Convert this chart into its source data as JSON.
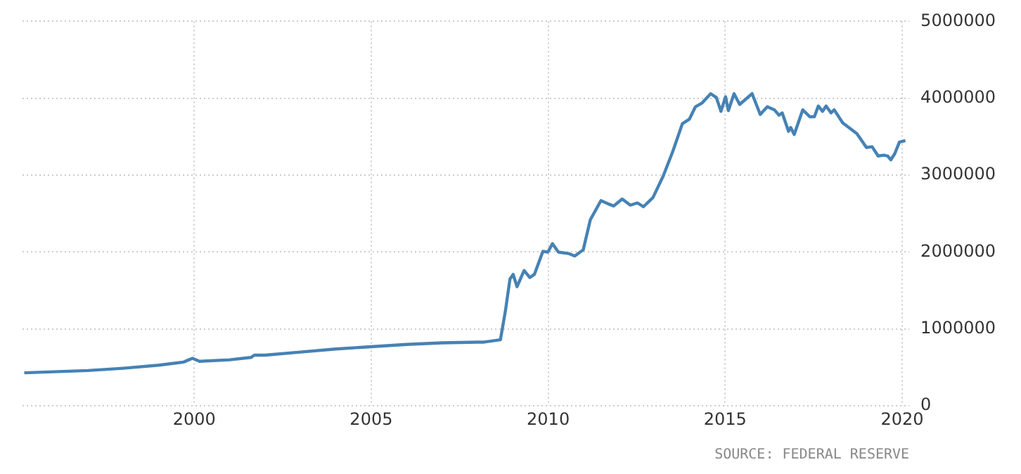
{
  "chart_data": {
    "type": "line",
    "xlim": [
      1995.15,
      2020.2
    ],
    "xticks": [
      2000,
      2005,
      2010,
      2015,
      2020
    ],
    "ylim": [
      0,
      5000000
    ],
    "yticks": [
      0,
      1000000,
      2000000,
      3000000,
      4000000,
      5000000
    ],
    "grid": true,
    "legend": false,
    "marker": "none",
    "line_style": "solid",
    "annotations": [
      "SOURCE: FEDERAL RESERVE"
    ],
    "series": [
      {
        "color": "#4682b4",
        "x": [
          1995.2,
          1997,
          1998,
          1999,
          1999.7,
          1999.95,
          2000.15,
          2001,
          2001.6,
          2001.7,
          2002,
          2003,
          2004,
          2005,
          2006,
          2007,
          2008,
          2008.19,
          2008.65,
          2008.79,
          2008.92,
          2009.01,
          2009.12,
          2009.32,
          2009.48,
          2009.61,
          2009.85,
          2009.99,
          2010.12,
          2010.29,
          2010.59,
          2010.75,
          2010.99,
          2011.19,
          2011.49,
          2011.68,
          2011.85,
          2012.09,
          2012.32,
          2012.52,
          2012.69,
          2012.96,
          2013.25,
          2013.52,
          2013.79,
          2013.99,
          2014.16,
          2014.35,
          2014.59,
          2014.75,
          2014.88,
          2015.01,
          2015.09,
          2015.25,
          2015.41,
          2015.76,
          2015.99,
          2016.19,
          2016.39,
          2016.52,
          2016.61,
          2016.79,
          2016.85,
          2016.95,
          2017.19,
          2017.39,
          2017.52,
          2017.63,
          2017.75,
          2017.85,
          2017.99,
          2018.08,
          2018.32,
          2018.72,
          2018.99,
          2019.15,
          2019.32,
          2019.49,
          2019.59,
          2019.68,
          2019.79,
          2019.92,
          2020.09
        ],
        "values": [
          430000,
          460000,
          490000,
          530000,
          570000,
          620000,
          580000,
          600000,
          630000,
          660000,
          660000,
          700000,
          740000,
          770000,
          800000,
          820000,
          830000,
          830000,
          860000,
          1230000,
          1650000,
          1710000,
          1550000,
          1760000,
          1670000,
          1710000,
          2010000,
          2000000,
          2110000,
          2000000,
          1980000,
          1950000,
          2030000,
          2420000,
          2670000,
          2630000,
          2600000,
          2690000,
          2610000,
          2640000,
          2590000,
          2710000,
          2990000,
          3310000,
          3670000,
          3730000,
          3890000,
          3940000,
          4060000,
          4010000,
          3830000,
          4020000,
          3840000,
          4060000,
          3920000,
          4060000,
          3790000,
          3890000,
          3850000,
          3780000,
          3810000,
          3570000,
          3620000,
          3530000,
          3850000,
          3760000,
          3760000,
          3900000,
          3830000,
          3900000,
          3810000,
          3850000,
          3680000,
          3540000,
          3360000,
          3370000,
          3250000,
          3260000,
          3250000,
          3200000,
          3280000,
          3430000,
          3450000
        ]
      }
    ]
  }
}
